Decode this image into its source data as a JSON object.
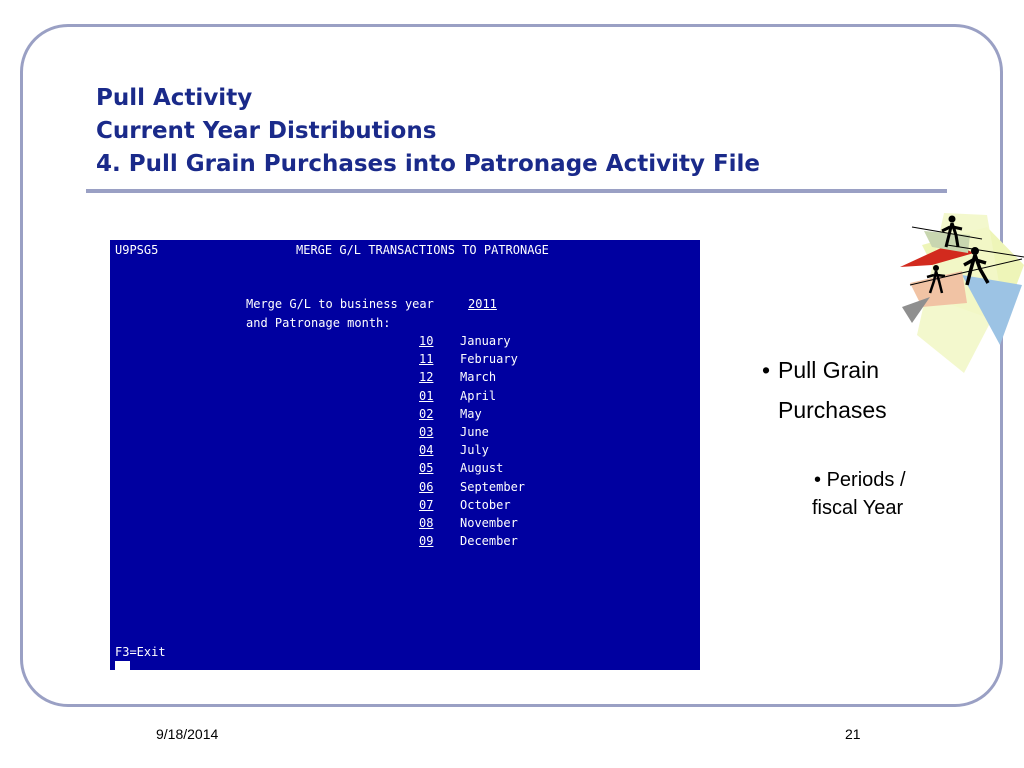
{
  "slide": {
    "title_lines": [
      "Pull Activity",
      "Current Year Distributions",
      "4.  Pull Grain Purchases into Patronage Activity File"
    ],
    "footer_date": "9/18/2014",
    "page_number": "21"
  },
  "terminal": {
    "program_id": "U9PSG5",
    "screen_title": "MERGE G/L TRANSACTIONS TO PATRONAGE",
    "prompt1": "Merge G/L to business year",
    "year": "2011",
    "prompt2": "and Patronage month:",
    "months": [
      {
        "code": "10",
        "name": "January"
      },
      {
        "code": "11",
        "name": "February"
      },
      {
        "code": "12",
        "name": "March"
      },
      {
        "code": "01",
        "name": "April"
      },
      {
        "code": "02",
        "name": "May"
      },
      {
        "code": "03",
        "name": "June"
      },
      {
        "code": "04",
        "name": "July"
      },
      {
        "code": "05",
        "name": "August"
      },
      {
        "code": "06",
        "name": "September"
      },
      {
        "code": "07",
        "name": "October"
      },
      {
        "code": "08",
        "name": "November"
      },
      {
        "code": "09",
        "name": "December"
      }
    ],
    "function_key": "F3=Exit",
    "colors": {
      "background": "#0000a0",
      "text": "#ffffff"
    }
  },
  "bullets": {
    "main_line1": "Pull Grain",
    "main_line2": "Purchases",
    "sub_line1": "Periods /",
    "sub_line2": "fiscal Year"
  },
  "colors": {
    "title": "#1a2a8a",
    "frame": "#9aa0c4"
  },
  "icons": {
    "clipart": "business-people-balancing-clipart"
  }
}
